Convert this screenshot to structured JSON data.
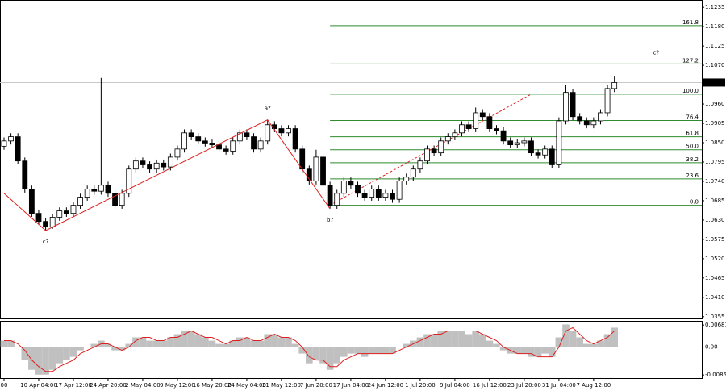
{
  "chart_data": {
    "type": "candlestick",
    "xlim": [
      -0.58,
      100.6
    ],
    "xticks": [
      {
        "value": 0,
        "label": "00"
      },
      {
        "value": 5,
        "label": "10 Apr 04:00"
      },
      {
        "value": 10,
        "label": "17 Apr 12:00"
      },
      {
        "value": 15,
        "label": "24 Apr 20:00"
      },
      {
        "value": 20,
        "label": "2 May 04:00"
      },
      {
        "value": 25,
        "label": "9 May 12:00"
      },
      {
        "value": 30,
        "label": "16 May 20:00"
      },
      {
        "value": 35,
        "label": "24 May 04:00"
      },
      {
        "value": 40,
        "label": "31 May 12:00"
      },
      {
        "value": 45,
        "label": "7 Jun 20:00"
      },
      {
        "value": 50,
        "label": "17 Jun 04:00"
      },
      {
        "value": 55,
        "label": "24 Jun 12:00"
      },
      {
        "value": 60,
        "label": "1 Jul 20:00"
      },
      {
        "value": 65,
        "label": "9 Jul 04:00"
      },
      {
        "value": 70,
        "label": "16 Jul 12:00"
      },
      {
        "value": 75,
        "label": "23 Jul 20:00"
      },
      {
        "value": 80,
        "label": "31 Jul 04:00"
      },
      {
        "value": 85,
        "label": "7 Aug 12:00"
      }
    ],
    "ylim": [
      1.035,
      1.1256
    ],
    "yticks": [
      1.1235,
      {
        "value": 1.118,
        "label": "1.1180"
      },
      1.1125,
      {
        "value": 1.107,
        "label": "1.1070"
      },
      1.1015,
      {
        "value": 1.096,
        "label": "1.0960"
      },
      1.0905,
      {
        "value": 1.085,
        "label": "1.0850"
      },
      1.0795,
      {
        "value": 1.074,
        "label": "1.0740"
      },
      1.0685,
      {
        "value": 1.063,
        "label": "1.0630"
      },
      1.0575,
      {
        "value": 1.052,
        "label": "1.0520"
      },
      1.0465,
      {
        "value": 1.041,
        "label": "1.0410"
      },
      1.0355
    ],
    "last_price": 1.1021,
    "open": [
      1.084,
      1.0855,
      1.0867,
      1.0798,
      1.0718,
      1.0649,
      1.0626,
      1.061,
      1.0638,
      1.0656,
      1.0649,
      1.0672,
      1.0695,
      1.0718,
      1.0712,
      1.0729,
      1.0706,
      1.0672,
      1.0706,
      1.0775,
      1.0798,
      1.0787,
      1.0775,
      1.0792,
      1.0781,
      1.0809,
      1.0832,
      1.0878,
      1.0867,
      1.0855,
      1.0849,
      1.0844,
      1.0832,
      1.0826,
      1.0855,
      1.0878,
      1.0867,
      1.0832,
      1.0855,
      1.0901,
      1.089,
      1.0878,
      1.089,
      1.0832,
      1.0775,
      1.0741,
      1.0809,
      1.0729,
      1.0672,
      1.0706,
      1.0741,
      1.0729,
      1.0706,
      1.0695,
      1.0718,
      1.0695,
      1.0706,
      1.0689,
      1.0741,
      1.0752,
      1.0775,
      1.0798,
      1.0832,
      1.0821,
      1.0855,
      1.0867,
      1.0878,
      1.0901,
      1.089,
      1.0935,
      1.0924,
      1.089,
      1.0884,
      1.0855,
      1.0844,
      1.085,
      1.0855,
      1.0821,
      1.0815,
      1.0832,
      1.0787,
      1.0912,
      1.0993,
      1.0924,
      1.0912,
      1.0901,
      1.0912,
      1.0935,
      1.1004
    ],
    "high": [
      1.0865,
      1.0877,
      1.0877,
      1.0808,
      1.0728,
      1.0659,
      1.0636,
      1.0648,
      1.0666,
      1.0666,
      1.0682,
      1.0705,
      1.0728,
      1.0728,
      1.1034,
      1.0739,
      1.0716,
      1.0716,
      1.0785,
      1.0808,
      1.0808,
      1.0797,
      1.0802,
      1.0802,
      1.0819,
      1.0842,
      1.0888,
      1.0888,
      1.0877,
      1.0865,
      1.0859,
      1.0854,
      1.0842,
      1.0865,
      1.0888,
      1.0888,
      1.0877,
      1.0865,
      1.0915,
      1.0911,
      1.09,
      1.09,
      1.09,
      1.0842,
      1.0785,
      1.083,
      1.0819,
      1.0739,
      1.0716,
      1.0751,
      1.0751,
      1.0739,
      1.0716,
      1.0728,
      1.0728,
      1.0716,
      1.0716,
      1.0751,
      1.0762,
      1.0785,
      1.0808,
      1.0842,
      1.0842,
      1.0865,
      1.0877,
      1.0888,
      1.0911,
      1.0911,
      1.095,
      1.0945,
      1.0934,
      1.09,
      1.0894,
      1.0865,
      1.086,
      1.0865,
      1.0865,
      1.0831,
      1.0842,
      1.0842,
      1.0922,
      1.1015,
      1.1003,
      1.0934,
      1.0922,
      1.0922,
      1.0945,
      1.1014,
      1.104
    ],
    "low": [
      1.083,
      1.0845,
      1.0788,
      1.0708,
      1.0639,
      1.0616,
      1.06,
      1.0605,
      1.0628,
      1.0639,
      1.0639,
      1.0662,
      1.0685,
      1.0702,
      1.0702,
      1.0696,
      1.0662,
      1.0662,
      1.0696,
      1.0765,
      1.0777,
      1.0765,
      1.0765,
      1.0771,
      1.0771,
      1.0799,
      1.0822,
      1.0857,
      1.0845,
      1.0839,
      1.0834,
      1.0822,
      1.0816,
      1.0816,
      1.0845,
      1.0857,
      1.0822,
      1.0822,
      1.0845,
      1.088,
      1.0868,
      1.0868,
      1.0822,
      1.0765,
      1.0731,
      1.0731,
      1.0719,
      1.0662,
      1.0662,
      1.0696,
      1.0719,
      1.0696,
      1.0685,
      1.0685,
      1.0685,
      1.0685,
      1.0679,
      1.0679,
      1.0731,
      1.0742,
      1.0765,
      1.0788,
      1.0811,
      1.0811,
      1.0845,
      1.0857,
      1.0868,
      1.088,
      1.088,
      1.0914,
      1.088,
      1.0874,
      1.0845,
      1.0834,
      1.0834,
      1.084,
      1.0811,
      1.0805,
      1.0805,
      1.0777,
      1.0777,
      1.0902,
      1.0914,
      1.0902,
      1.0891,
      1.0891,
      1.0902,
      1.0925,
      1.0994
    ],
    "close": [
      1.0855,
      1.0867,
      1.0798,
      1.0718,
      1.0649,
      1.0626,
      1.061,
      1.0638,
      1.0656,
      1.0649,
      1.0672,
      1.0695,
      1.0718,
      1.0712,
      1.0729,
      1.0706,
      1.0672,
      1.0706,
      1.0775,
      1.0798,
      1.0787,
      1.0775,
      1.0792,
      1.0781,
      1.0809,
      1.0832,
      1.0878,
      1.0867,
      1.0855,
      1.0849,
      1.0844,
      1.0832,
      1.0826,
      1.0855,
      1.0878,
      1.0867,
      1.0832,
      1.0855,
      1.0901,
      1.089,
      1.0878,
      1.089,
      1.0832,
      1.0775,
      1.0741,
      1.0809,
      1.0729,
      1.0672,
      1.0706,
      1.0741,
      1.0729,
      1.0706,
      1.0695,
      1.0718,
      1.0695,
      1.0706,
      1.0689,
      1.0741,
      1.0752,
      1.0775,
      1.0798,
      1.0832,
      1.0821,
      1.0855,
      1.0867,
      1.0878,
      1.0901,
      1.089,
      1.0935,
      1.0924,
      1.089,
      1.0884,
      1.0855,
      1.0844,
      1.085,
      1.0855,
      1.0821,
      1.0815,
      1.0832,
      1.0787,
      1.0912,
      1.0993,
      1.0924,
      1.0912,
      1.0901,
      1.0912,
      1.0935,
      1.1004,
      1.1021
    ],
    "fib": {
      "start_x": 47,
      "color": "#2e8b2e",
      "levels": [
        {
          "label": "161.8",
          "price": 1.1183
        },
        {
          "label": "127.2",
          "price": 1.1074
        },
        {
          "label": "100.0",
          "price": 1.0988
        },
        {
          "label": "76.4",
          "price": 1.0913
        },
        {
          "label": "61.8",
          "price": 1.0867
        },
        {
          "label": "50.0",
          "price": 1.083
        },
        {
          "label": "38.2",
          "price": 1.0793
        },
        {
          "label": "23.6",
          "price": 1.0747
        },
        {
          "label": "0.0",
          "price": 1.0672
        }
      ]
    },
    "waves": [
      {
        "label": null,
        "x": 0,
        "price": 1.0706
      },
      {
        "label": "c?",
        "x": 6,
        "price": 1.06
      },
      {
        "label": "a?",
        "x": 38,
        "price": 1.0915
      },
      {
        "label": "b?",
        "x": 47,
        "price": 1.0662
      },
      {
        "label": "c?",
        "x": 94,
        "price": 1.1074
      }
    ],
    "wave_color": "#e02020",
    "projection": {
      "x": [
        47,
        76
      ],
      "price": [
        1.0672,
        1.0988
      ]
    },
    "oscillator": {
      "type": "histogram",
      "ylim": [
        -0.0098,
        0.0081
      ],
      "yticks": [
        0.00681,
        {
          "value": 0,
          "label": "0.00"
        },
        -0.00859
      ],
      "values": [
        0.002,
        0.002,
        0.0,
        -0.004,
        -0.007,
        -0.0085,
        -0.0085,
        -0.007,
        -0.005,
        -0.004,
        -0.003,
        -0.001,
        0.0,
        0.001,
        0.002,
        0.001,
        -0.001,
        -0.001,
        0.001,
        0.003,
        0.003,
        0.002,
        0.002,
        0.002,
        0.003,
        0.004,
        0.005,
        0.005,
        0.004,
        0.003,
        0.002,
        0.001,
        0.001,
        0.002,
        0.003,
        0.003,
        0.002,
        0.002,
        0.004,
        0.004,
        0.003,
        0.003,
        0.001,
        -0.002,
        -0.005,
        -0.004,
        -0.005,
        -0.007,
        -0.005,
        -0.003,
        -0.002,
        -0.002,
        -0.003,
        -0.002,
        -0.002,
        -0.002,
        -0.002,
        0.0,
        0.001,
        0.002,
        0.003,
        0.004,
        0.004,
        0.005,
        0.005,
        0.005,
        0.005,
        0.004,
        0.005,
        0.004,
        0.002,
        0.001,
        -0.001,
        -0.002,
        -0.002,
        -0.002,
        -0.003,
        -0.003,
        -0.002,
        -0.003,
        0.003,
        0.007,
        0.005,
        0.003,
        0.001,
        0.001,
        0.002,
        0.004,
        0.006
      ],
      "signal": [
        0.002,
        0.002,
        0.001,
        -0.001,
        -0.004,
        -0.006,
        -0.0075,
        -0.0075,
        -0.006,
        -0.005,
        -0.004,
        -0.002,
        -0.001,
        0.0,
        0.001,
        0.001,
        0.0,
        -0.001,
        0.0,
        0.002,
        0.003,
        0.003,
        0.002,
        0.002,
        0.003,
        0.003,
        0.004,
        0.005,
        0.004,
        0.003,
        0.003,
        0.002,
        0.001,
        0.002,
        0.002,
        0.003,
        0.002,
        0.002,
        0.003,
        0.004,
        0.003,
        0.003,
        0.002,
        0.0,
        -0.003,
        -0.004,
        -0.004,
        -0.006,
        -0.006,
        -0.004,
        -0.003,
        -0.002,
        -0.002,
        -0.002,
        -0.002,
        -0.002,
        -0.002,
        -0.001,
        0.0,
        0.001,
        0.002,
        0.003,
        0.004,
        0.004,
        0.005,
        0.005,
        0.005,
        0.005,
        0.005,
        0.004,
        0.003,
        0.002,
        0.0,
        -0.001,
        -0.002,
        -0.002,
        -0.002,
        -0.003,
        -0.003,
        -0.003,
        0.0,
        0.005,
        0.006,
        0.004,
        0.002,
        0.001,
        0.002,
        0.003,
        0.005
      ],
      "color": "#c0c0c0",
      "signal_color": "#e02020"
    }
  }
}
